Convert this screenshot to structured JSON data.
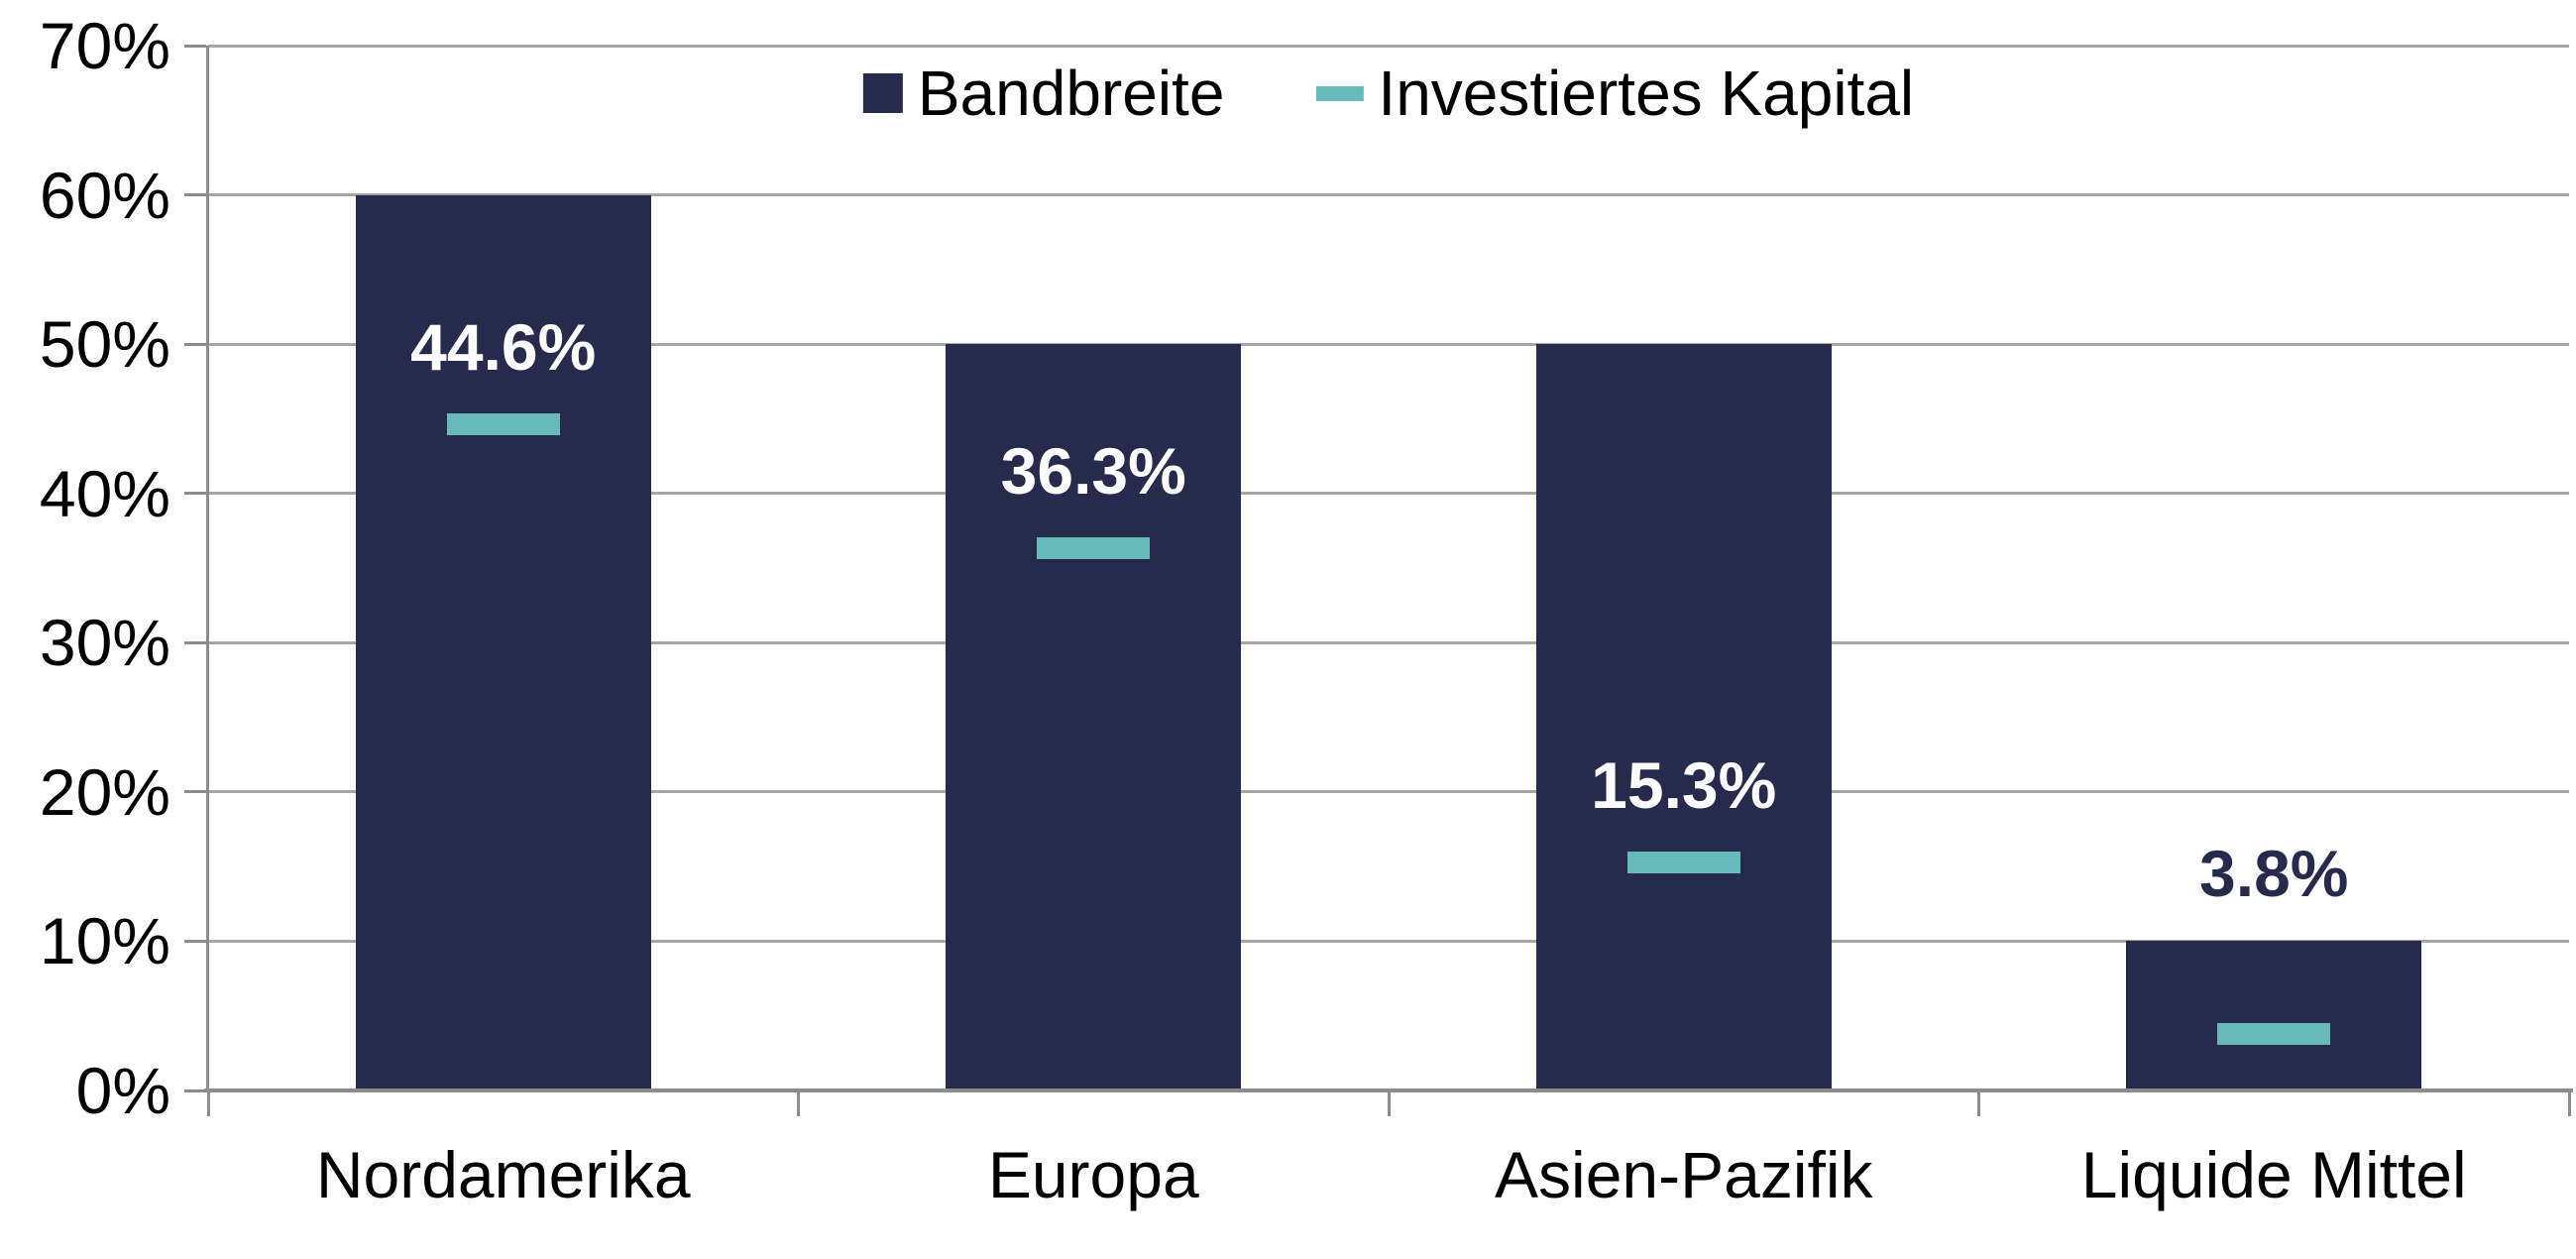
{
  "chart_data": {
    "type": "bar",
    "title": "",
    "xlabel": "",
    "ylabel": "",
    "categories": [
      "Nordamerika",
      "Europa",
      "Asien-Pazifik",
      "Liquide Mittel"
    ],
    "series": [
      {
        "name": "Bandbreite",
        "role": "bar",
        "swatch": "square",
        "values": [
          60,
          50,
          50,
          10
        ]
      },
      {
        "name": "Investiertes Kapital",
        "role": "dash-marker",
        "swatch": "dash",
        "values": [
          44.6,
          36.3,
          15.3,
          3.8
        ]
      }
    ],
    "value_labels": [
      "44.6%",
      "36.3%",
      "15.3%",
      "3.8%"
    ],
    "ylim": [
      0,
      70
    ],
    "yticks": [
      0,
      10,
      20,
      30,
      40,
      50,
      60,
      70
    ],
    "ytick_labels": [
      "0%",
      "10%",
      "20%",
      "30%",
      "40%",
      "50%",
      "60%",
      "70%"
    ],
    "grid": true,
    "legend_position": "top-center"
  },
  "colors": {
    "bar": "#262A4C",
    "marker": "#68BAB8",
    "gridline": "#A6A6A6",
    "axis": "#8C8C8C",
    "label_inside": "#FFFFFF",
    "label_outside": "#262A4C",
    "text": "#000000",
    "background": "#FFFFFF"
  }
}
